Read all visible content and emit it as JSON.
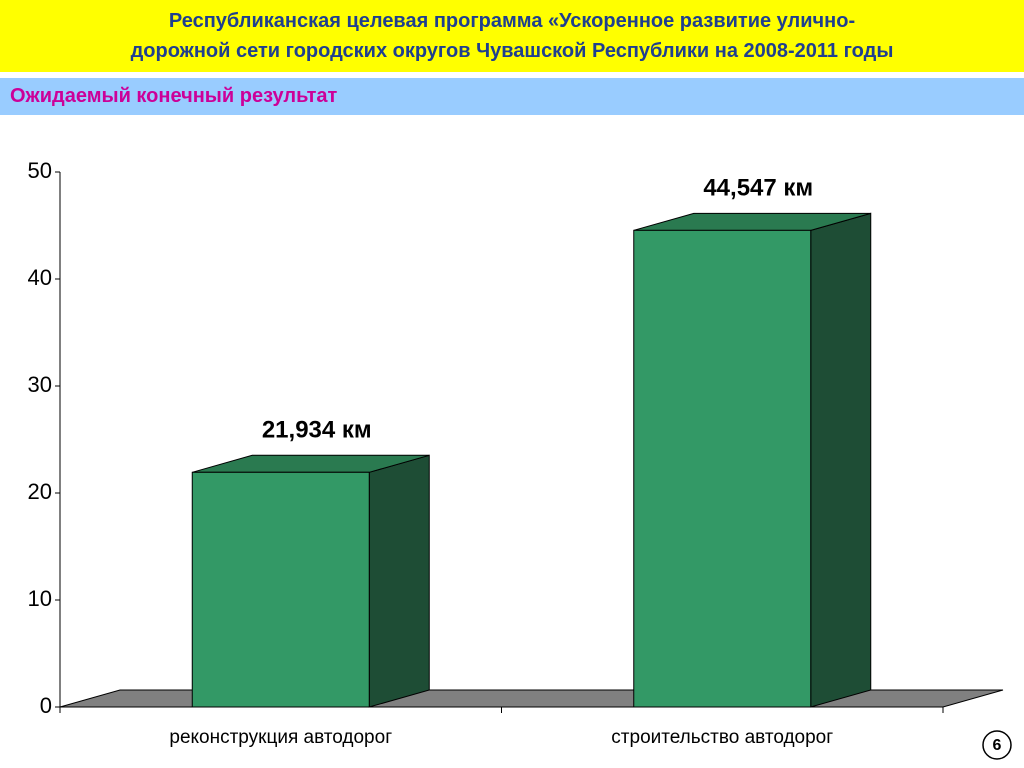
{
  "header": {
    "title_lines": [
      "Республиканская целевая программа «Ускоренное развитие улично-",
      "дорожной сети городских округов Чувашской Республики на 2008-2011 годы"
    ]
  },
  "subheader": "Ожидаемый конечный результат",
  "page_number": "6",
  "chart_data": {
    "type": "bar3d",
    "categories": [
      "реконструкция автодорог",
      "строительство автодорог"
    ],
    "values": [
      21.934,
      44.547
    ],
    "value_labels": [
      "21,934 км",
      "44,547 км"
    ],
    "color": "#339966",
    "ylim": [
      0,
      50
    ],
    "yticks": [
      0,
      10,
      20,
      30,
      40,
      50
    ]
  }
}
